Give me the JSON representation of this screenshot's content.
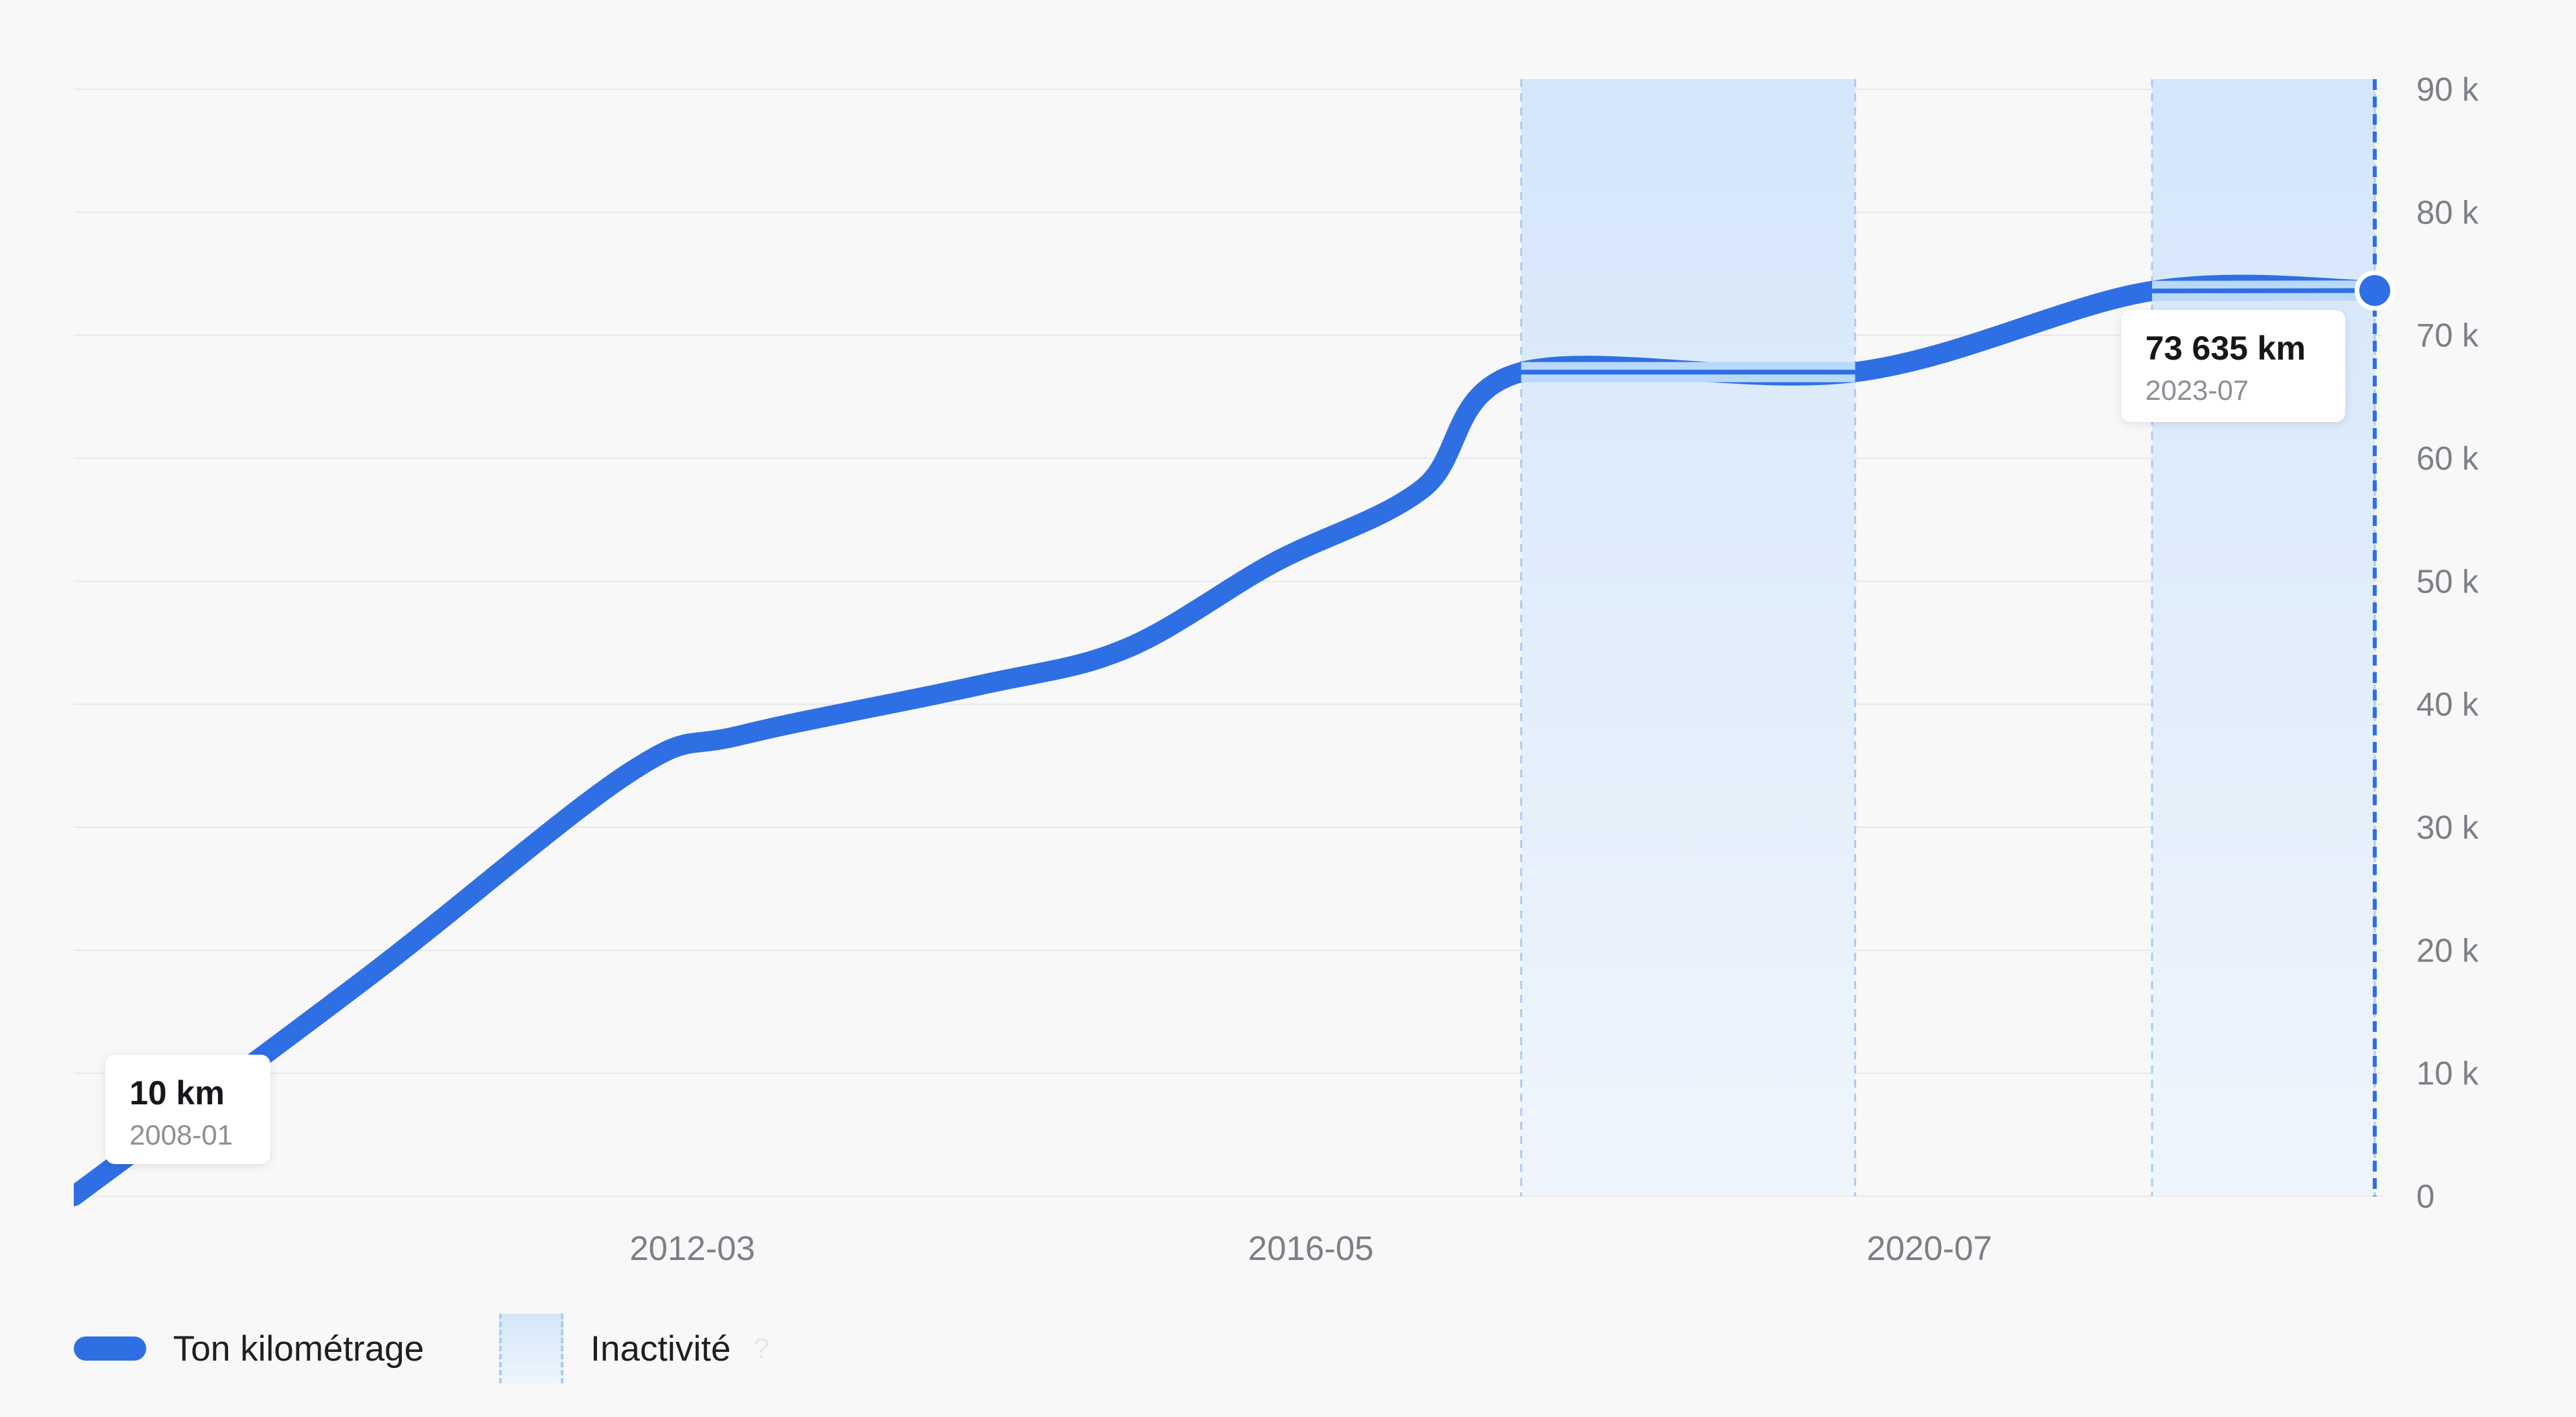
{
  "chart_data": {
    "type": "line",
    "y_ticks": [
      "0",
      "10 k",
      "20 k",
      "30 k",
      "40 k",
      "50 k",
      "60 k",
      "70 k",
      "80 k",
      "90 k"
    ],
    "ylim": [
      0,
      90000
    ],
    "x_ticks": [
      "2012-03",
      "2016-05",
      "2020-07"
    ],
    "xlim": [
      "2008-01",
      "2023-07"
    ],
    "grid": true,
    "legend_position": "bottom-left",
    "series": [
      {
        "name": "Ton kilométrage",
        "color": "#2f6fe4",
        "points": [
          {
            "x": "2008-01",
            "y": 10
          },
          {
            "x": "2010-01",
            "y": 18000
          },
          {
            "x": "2011-10",
            "y": 34500
          },
          {
            "x": "2012-07",
            "y": 37500
          },
          {
            "x": "2014-02",
            "y": 41500
          },
          {
            "x": "2015-02",
            "y": 44500
          },
          {
            "x": "2016-02",
            "y": 51500
          },
          {
            "x": "2017-02",
            "y": 57500
          },
          {
            "x": "2017-10",
            "y": 67000
          },
          {
            "x": "2020-01",
            "y": 67000
          },
          {
            "x": "2022-01",
            "y": 73600
          },
          {
            "x": "2023-07",
            "y": 73635
          }
        ]
      }
    ],
    "inactivity": {
      "label": "Inactivité",
      "help": "?",
      "color": "#d8e9fb",
      "zones": [
        {
          "start": "2017-10",
          "end": "2020-01"
        },
        {
          "start": "2022-01",
          "end": "2023-07"
        }
      ]
    },
    "tooltips": [
      {
        "value": "10 km",
        "date": "2008-01"
      },
      {
        "value": "73 635 km",
        "date": "2023-07"
      }
    ]
  }
}
